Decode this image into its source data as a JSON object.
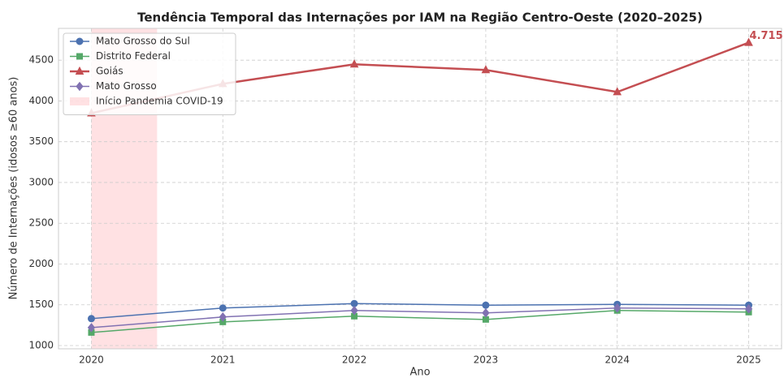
{
  "chart_data": {
    "type": "line",
    "title": "Tendência Temporal das Internações por IAM na Região Centro-Oeste (2020–2025)",
    "xlabel": "Ano",
    "ylabel": "Número de Internações (idosos ≥60 anos)",
    "x": [
      2020,
      2021,
      2022,
      2023,
      2024,
      2025
    ],
    "series": [
      {
        "name": "Mato Grosso do Sul",
        "color": "#4c72b0",
        "marker": "circle",
        "values": [
          1330,
          1460,
          1515,
          1495,
          1505,
          1495
        ]
      },
      {
        "name": "Distrito Federal",
        "color": "#55a868",
        "marker": "square",
        "values": [
          1160,
          1290,
          1360,
          1320,
          1430,
          1410
        ]
      },
      {
        "name": "Goiás",
        "color": "#c44e52",
        "marker": "triangle",
        "values": [
          3850,
          4210,
          4450,
          4380,
          4110,
          4715
        ],
        "value_labels": [
          null,
          null,
          null,
          null,
          null,
          "4.715"
        ]
      },
      {
        "name": "Mato Grosso",
        "color": "#8172b2",
        "marker": "diamond",
        "values": [
          1220,
          1350,
          1430,
          1400,
          1460,
          1450
        ]
      }
    ],
    "span": {
      "label": "Início Pandemia COVID-19",
      "x": [
        2020,
        2020.5
      ],
      "color": "#ffb3b8"
    },
    "xlim": [
      2019.75,
      2025.25
    ],
    "ylim": [
      960,
      4890
    ],
    "xticks": [
      2020,
      2021,
      2022,
      2023,
      2024,
      2025
    ],
    "yticks": [
      1000,
      1500,
      2000,
      2500,
      3000,
      3500,
      4000,
      4500
    ],
    "grid": true,
    "legend": "upper left"
  }
}
